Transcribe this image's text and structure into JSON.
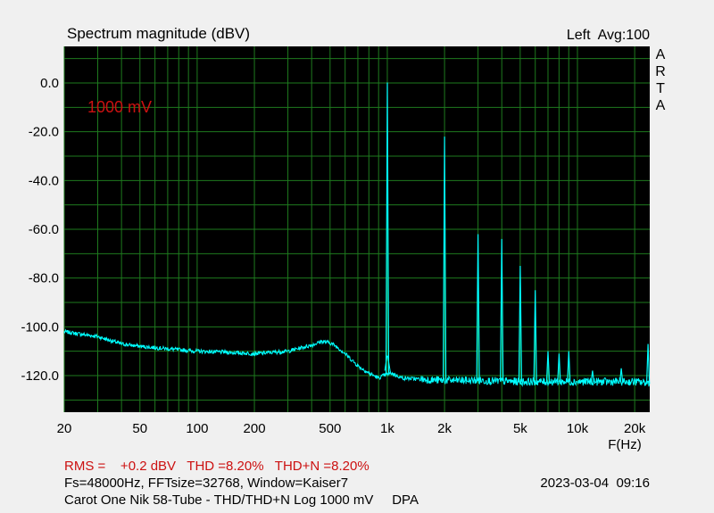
{
  "header": {
    "title": "Spectrum magnitude (dBV)",
    "channel_avg": "Left  Avg:100"
  },
  "brand_letters": [
    "A",
    "R",
    "T",
    "A"
  ],
  "annotation": "1000 mV",
  "footer": {
    "rms_line": "RMS =    +0.2 dBV   THD =8.20%   THD+N =8.20%",
    "fs_line": "Fs=48000Hz, FFTsize=32768, Window=Kaiser7",
    "datetime": "2023-03-04  09:16",
    "description": "Carot One Nik 58-Tube - THD/THD+N Log 1000 mV     DPA"
  },
  "colors": {
    "plot_background": "#000000",
    "grid": "#1e7a1e",
    "trace": "#00ffff",
    "annotation": "#cc1111"
  },
  "chart_data": {
    "type": "line",
    "title": "Spectrum magnitude (dBV)",
    "xlabel": "F(Hz)",
    "ylabel": "",
    "x_scale": "log",
    "xlim": [
      20,
      24000
    ],
    "ylim": [
      -135,
      15
    ],
    "x_ticks": [
      20,
      50,
      100,
      200,
      500,
      1000,
      2000,
      5000,
      10000,
      20000
    ],
    "x_tick_labels": [
      "20",
      "50",
      "100",
      "200",
      "500",
      "1k",
      "2k",
      "5k",
      "10k",
      "20k"
    ],
    "y_ticks": [
      0,
      -20,
      -40,
      -60,
      -80,
      -100,
      -120
    ],
    "y_tick_labels": [
      "0.0",
      "-20.0",
      "-40.0",
      "-60.0",
      "-80.0",
      "-100.0",
      "-120.0"
    ],
    "grid": true,
    "series": [
      {
        "noise_floor": {
          "x": [
            20,
            30,
            40,
            50,
            70,
            100,
            150,
            200,
            300,
            400,
            450,
            500,
            550,
            600,
            700,
            800,
            900,
            950,
            1050,
            1200,
            1500,
            2000,
            3000,
            5000,
            10000,
            20000,
            24000
          ],
          "y": [
            -102,
            -104,
            -107,
            -108,
            -109,
            -110,
            -110.5,
            -111,
            -110,
            -107.5,
            -106,
            -106.5,
            -108.5,
            -111,
            -116,
            -119,
            -121,
            -120,
            -119,
            -121,
            -121.5,
            -122,
            -122,
            -122.5,
            -122.5,
            -122.5,
            -123
          ]
        },
        "harmonics": [
          {
            "freq": 1000,
            "level": 0.2
          },
          {
            "freq": 2000,
            "level": -22
          },
          {
            "freq": 3000,
            "level": -62
          },
          {
            "freq": 4000,
            "level": -64
          },
          {
            "freq": 5000,
            "level": -75
          },
          {
            "freq": 6000,
            "level": -85
          },
          {
            "freq": 7000,
            "level": -110
          },
          {
            "freq": 8000,
            "level": -111
          },
          {
            "freq": 9000,
            "level": -110
          },
          {
            "freq": 12000,
            "level": -118
          },
          {
            "freq": 17000,
            "level": -117
          },
          {
            "freq": 23500,
            "level": -107
          }
        ]
      }
    ]
  }
}
